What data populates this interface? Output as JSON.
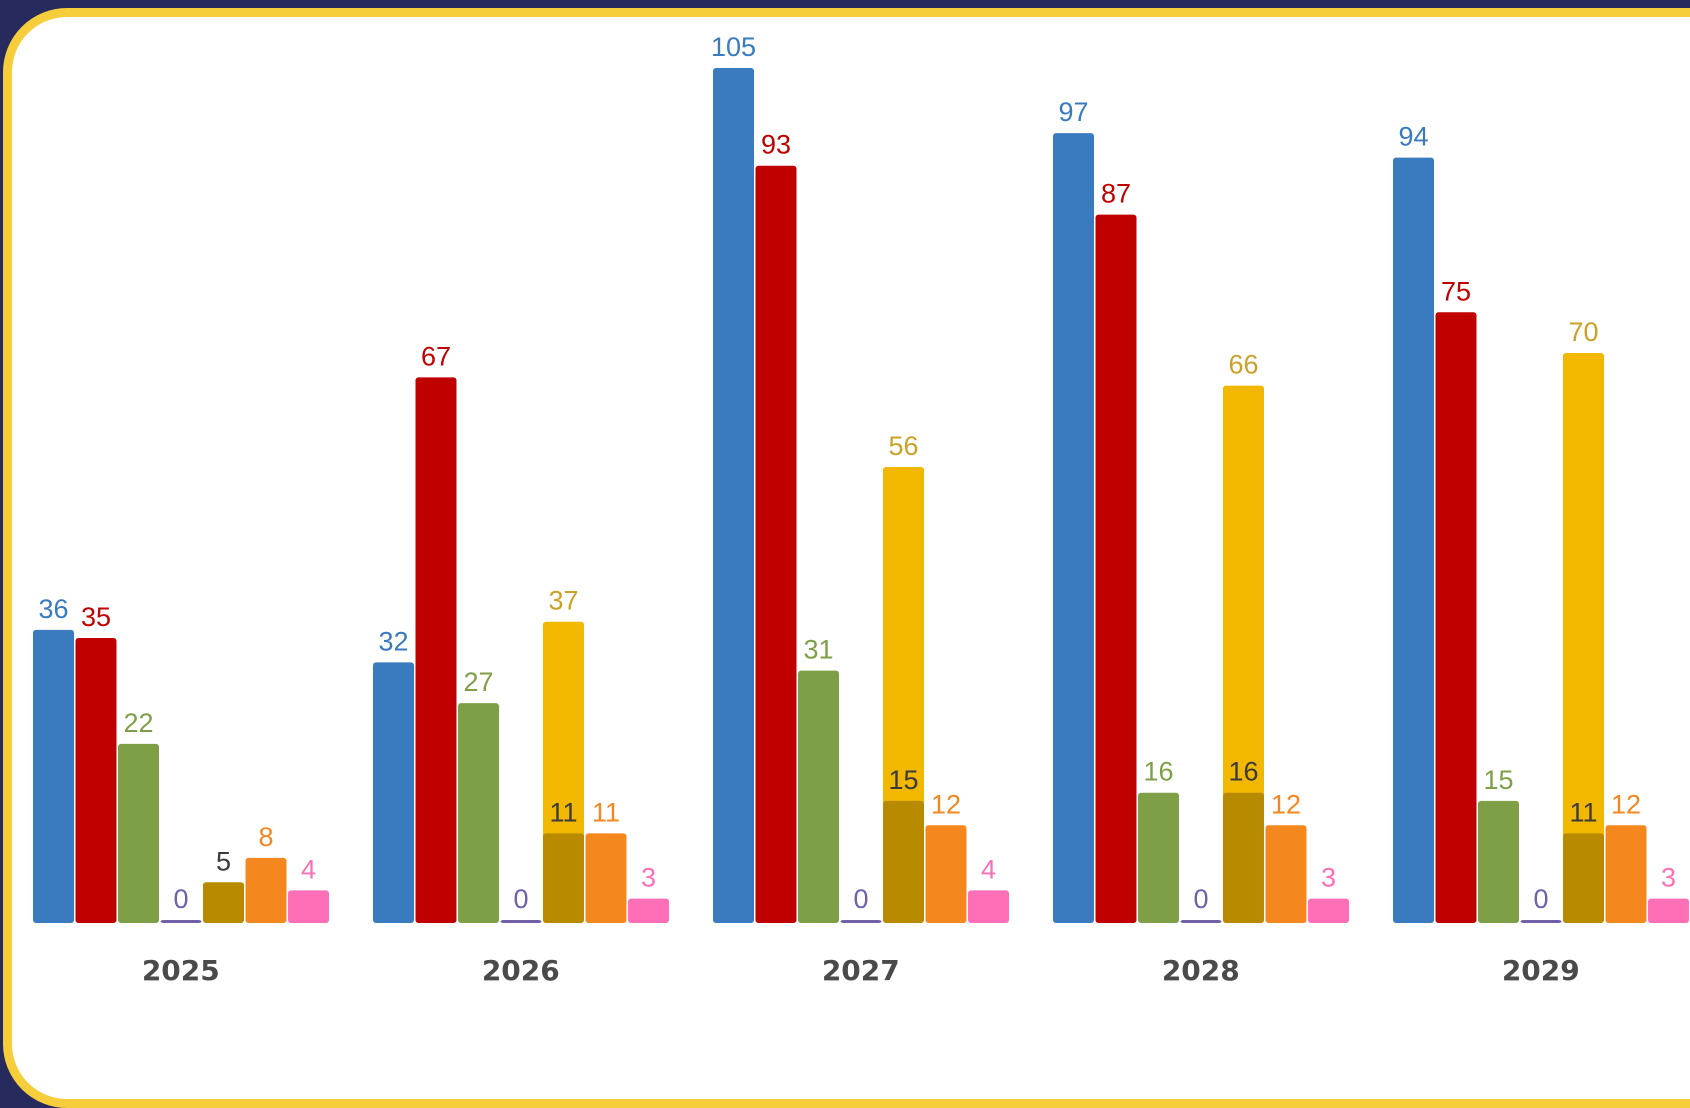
{
  "chart_data": {
    "type": "bar",
    "categories": [
      "2025",
      "2026",
      "2027",
      "2028",
      "2029"
    ],
    "series": [
      {
        "color": "#3a7bbf",
        "label_color": "#3a7bbf",
        "values": [
          36,
          32,
          105,
          97,
          94
        ]
      },
      {
        "color": "#c00000",
        "label_color": "#c00000",
        "values": [
          35,
          67,
          93,
          87,
          75
        ]
      },
      {
        "color": "#7f9f47",
        "label_color": "#7f9f47",
        "values": [
          22,
          27,
          31,
          16,
          15
        ]
      },
      {
        "color": "#7060a8",
        "label_color": "#7060a8",
        "values": [
          0,
          0,
          0,
          0,
          0
        ]
      },
      {
        "color": "#f2b800",
        "label_color": "#c9a227",
        "values": [
          null,
          37,
          56,
          66,
          70
        ]
      },
      {
        "color": "#b88a00",
        "label_color": "#3a3a3a",
        "values": [
          5,
          11,
          15,
          16,
          11
        ]
      },
      {
        "color": "#f5871f",
        "label_color": "#f5871f",
        "values": [
          8,
          11,
          12,
          12,
          12
        ]
      },
      {
        "color": "#ff6fb7",
        "label_color": "#ff6fb7",
        "values": [
          4,
          3,
          4,
          3,
          3
        ]
      }
    ],
    "overlap": {
      "base_series": 4,
      "front_series": 5
    },
    "ylim": [
      0,
      105
    ],
    "grid": false,
    "legend": "none",
    "title": "",
    "xlabel": "",
    "ylabel": ""
  }
}
